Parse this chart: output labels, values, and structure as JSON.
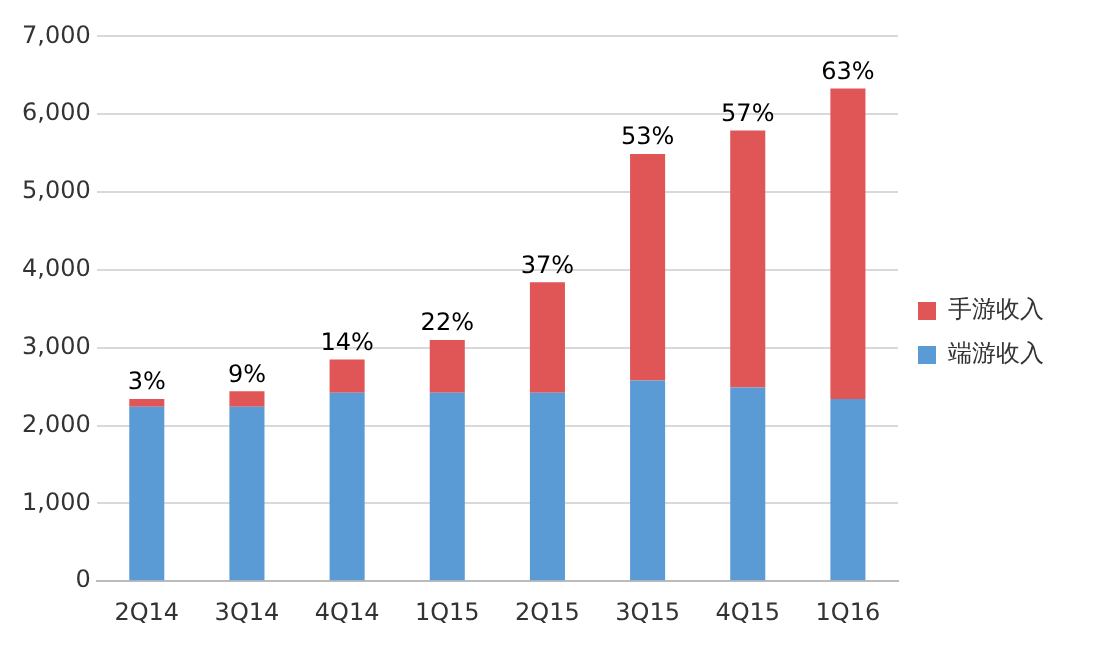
{
  "chart_data": {
    "type": "bar",
    "stacked": true,
    "categories": [
      "2Q14",
      "3Q14",
      "4Q14",
      "1Q15",
      "2Q15",
      "3Q15",
      "4Q15",
      "1Q16"
    ],
    "series": [
      {
        "name": "端游收入",
        "color": "#5b9bd5",
        "values": [
          2240,
          2240,
          2420,
          2420,
          2420,
          2580,
          2490,
          2340
        ]
      },
      {
        "name": "手游收入",
        "color": "#e05555",
        "values": [
          100,
          200,
          430,
          680,
          1420,
          2910,
          3300,
          3990
        ]
      }
    ],
    "annotations": [
      {
        "text": "3%",
        "x": "2Q14",
        "y": 2340
      },
      {
        "text": "9%",
        "x": "3Q14",
        "y": 2440
      },
      {
        "text": "14%",
        "x": "4Q14",
        "y": 2850
      },
      {
        "text": "22%",
        "x": "1Q15",
        "y": 3100
      },
      {
        "text": "37%",
        "x": "2Q15",
        "y": 3840
      },
      {
        "text": "53%",
        "x": "3Q15",
        "y": 5490
      },
      {
        "text": "57%",
        "x": "4Q15",
        "y": 5790
      },
      {
        "text": "63%",
        "x": "1Q16",
        "y": 6330
      }
    ],
    "ylim": [
      0,
      7000
    ],
    "yticks": [
      {
        "value": 0,
        "label": "0"
      },
      {
        "value": 1000,
        "label": "1,000"
      },
      {
        "value": 2000,
        "label": "2,000"
      },
      {
        "value": 3000,
        "label": "3,000"
      },
      {
        "value": 4000,
        "label": "4,000"
      },
      {
        "value": 5000,
        "label": "5,000"
      },
      {
        "value": 6000,
        "label": "6,000"
      },
      {
        "value": 7000,
        "label": "7,000"
      }
    ],
    "grid": "y",
    "legend": "right"
  }
}
